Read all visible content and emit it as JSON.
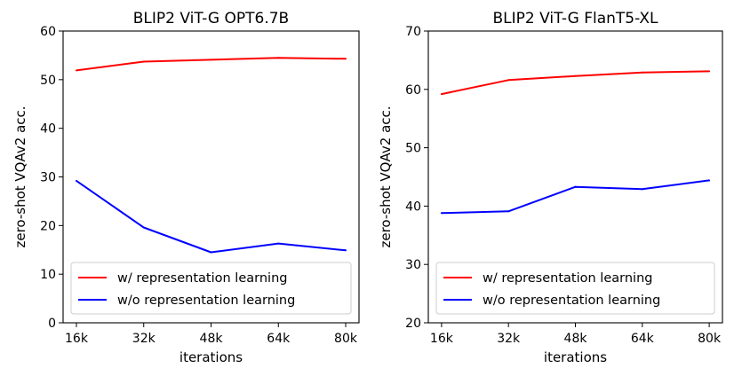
{
  "chart_data": [
    {
      "type": "line",
      "title": "BLIP2 ViT-G OPT6.7B",
      "xlabel": "iterations",
      "ylabel": "zero-shot VQAv2 acc.",
      "x": [
        "16k",
        "32k",
        "48k",
        "64k",
        "80k"
      ],
      "ylim": [
        0,
        60
      ],
      "yticks": [
        0,
        10,
        20,
        30,
        40,
        50,
        60
      ],
      "legend_position": "lower-right",
      "series": [
        {
          "name": "w/ representation learning",
          "color": "#ff0000",
          "values": [
            51.9,
            53.7,
            54.1,
            54.5,
            54.3
          ]
        },
        {
          "name": "w/o representation learning",
          "color": "#0000ff",
          "values": [
            29.2,
            19.6,
            14.5,
            16.3,
            14.9
          ]
        }
      ]
    },
    {
      "type": "line",
      "title": "BLIP2 ViT-G FlanT5-XL",
      "xlabel": "iterations",
      "ylabel": "zero-shot VQAv2 acc.",
      "x": [
        "16k",
        "32k",
        "48k",
        "64k",
        "80k"
      ],
      "ylim": [
        20,
        70
      ],
      "yticks": [
        20,
        30,
        40,
        50,
        60,
        70
      ],
      "legend_position": "lower-right",
      "series": [
        {
          "name": "w/ representation learning",
          "color": "#ff0000",
          "values": [
            59.2,
            61.6,
            62.3,
            62.9,
            63.1
          ]
        },
        {
          "name": "w/o representation learning",
          "color": "#0000ff",
          "values": [
            38.8,
            39.1,
            43.3,
            42.9,
            44.4
          ]
        }
      ]
    }
  ]
}
